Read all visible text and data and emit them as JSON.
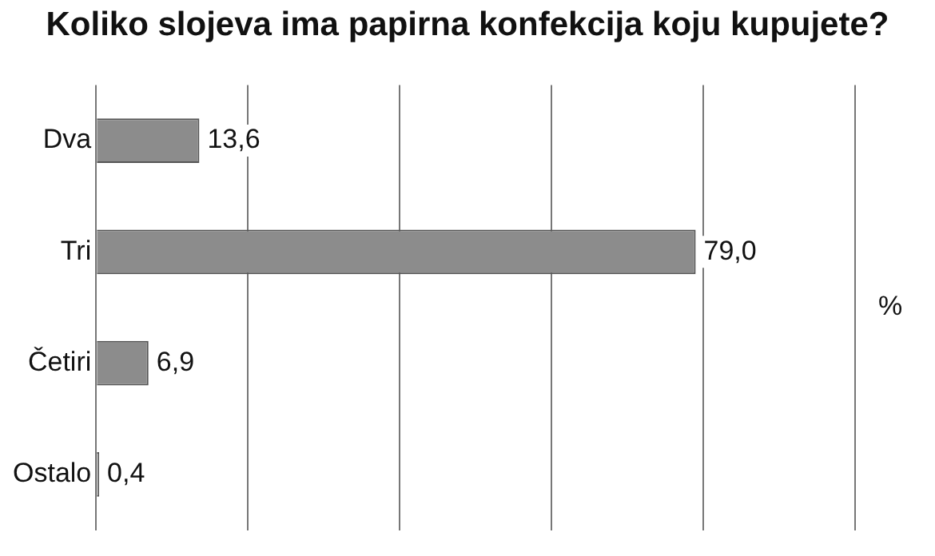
{
  "chart_data": {
    "type": "bar",
    "orientation": "horizontal",
    "title": "Koliko slojeva ima papirna konfekcija koju kupujete?",
    "y2label": "%",
    "categories": [
      "Dva",
      "Tri",
      "Četiri",
      "Ostalo"
    ],
    "values": [
      13.6,
      79.0,
      6.9,
      0.4
    ],
    "value_labels": [
      "13,6",
      "79,0",
      "6,9",
      "0,4"
    ],
    "color": "#8c8c8c",
    "xlim": [
      0,
      100
    ],
    "grid": "x",
    "tick_labels": "y",
    "legend": false
  }
}
